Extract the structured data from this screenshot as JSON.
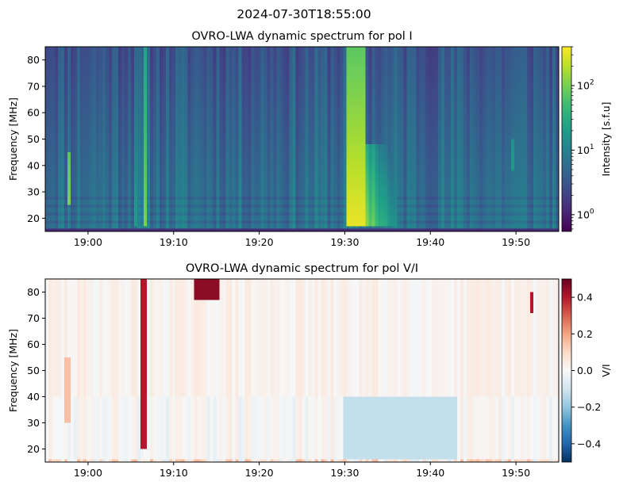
{
  "suptitle": "2024-07-30T18:55:00",
  "chart_data": [
    {
      "type": "heatmap",
      "title": "OVRO-LWA dynamic spectrum for pol I",
      "xlabel": "",
      "ylabel": "Frequency [MHz]",
      "x_ticks": [
        "19:00",
        "19:10",
        "19:20",
        "19:30",
        "19:40",
        "19:50"
      ],
      "x_tick_minutes": [
        5,
        15,
        25,
        35,
        45,
        55
      ],
      "xlim_minutes_after_18_55": [
        0,
        60
      ],
      "y_ticks": [
        20,
        30,
        40,
        50,
        60,
        70,
        80
      ],
      "ylim": [
        15,
        85
      ],
      "colorscale": "viridis",
      "colorbar": {
        "label": "Intensity [s.f.u]",
        "scale": "log",
        "range": [
          0.55,
          400
        ],
        "ticks": [
          {
            "value": 1,
            "label": "10",
            "exp": "0"
          },
          {
            "value": 10,
            "label": "10",
            "exp": "1"
          },
          {
            "value": 100,
            "label": "10",
            "exp": "2"
          }
        ]
      },
      "features": [
        {
          "kind": "broadband burst",
          "start_minute": 35.2,
          "end_minute": 37.5,
          "freq_range": [
            17,
            85
          ],
          "level": 0.97,
          "tail_until_minute": 41
        },
        {
          "kind": "type III burst",
          "start_minute": 11.3,
          "end_minute": 11.8,
          "freq_range": [
            17,
            85
          ],
          "level": 0.8
        },
        {
          "kind": "type III burst",
          "start_minute": 10.5,
          "end_minute": 10.9,
          "freq_range": [
            17,
            85
          ],
          "level": 0.55
        },
        {
          "kind": "type III burst",
          "start_minute": 2.5,
          "end_minute": 3.0,
          "freq_range": [
            25,
            45
          ],
          "level": 0.8
        },
        {
          "kind": "type III burst",
          "start_minute": 54.3,
          "end_minute": 54.7,
          "freq_range": [
            38,
            50
          ],
          "level": 0.55
        }
      ]
    },
    {
      "type": "heatmap",
      "title": "OVRO-LWA dynamic spectrum for pol V/I",
      "xlabel": "",
      "ylabel": "Frequency [MHz]",
      "x_ticks": [
        "19:00",
        "19:10",
        "19:20",
        "19:30",
        "19:40",
        "19:50"
      ],
      "x_tick_minutes": [
        5,
        15,
        25,
        35,
        45,
        55
      ],
      "xlim_minutes_after_18_55": [
        0,
        60
      ],
      "y_ticks": [
        20,
        30,
        40,
        50,
        60,
        70,
        80
      ],
      "ylim": [
        15,
        85
      ],
      "colorscale": "RdBu_r",
      "colorbar": {
        "label": "V/I",
        "scale": "linear",
        "range": [
          -0.5,
          0.5
        ],
        "ticks": [
          {
            "value": 0.4,
            "label": "0.4"
          },
          {
            "value": 0.2,
            "label": "0.2"
          },
          {
            "value": 0.0,
            "label": "0.0"
          },
          {
            "value": -0.2,
            "label": "−0.2"
          },
          {
            "value": -0.4,
            "label": "−0.4"
          }
        ]
      },
      "features": [
        {
          "kind": "positive band",
          "start_minute": 11.0,
          "end_minute": 11.7,
          "freq_range": [
            20,
            85
          ],
          "value": 0.4
        },
        {
          "kind": "positive patch",
          "start_minute": 2.2,
          "end_minute": 3.0,
          "freq_range": [
            30,
            55
          ],
          "value": 0.15
        },
        {
          "kind": "positive patch",
          "start_minute": 17.5,
          "end_minute": 20.5,
          "freq_range": [
            77,
            85
          ],
          "value": 0.45
        },
        {
          "kind": "positive patch",
          "start_minute": 56.5,
          "end_minute": 57.0,
          "freq_range": [
            72,
            80
          ],
          "value": 0.4
        },
        {
          "kind": "negative region",
          "start_minute": 35.0,
          "end_minute": 48.0,
          "freq_range": [
            16,
            40
          ],
          "value": -0.12
        }
      ]
    }
  ]
}
